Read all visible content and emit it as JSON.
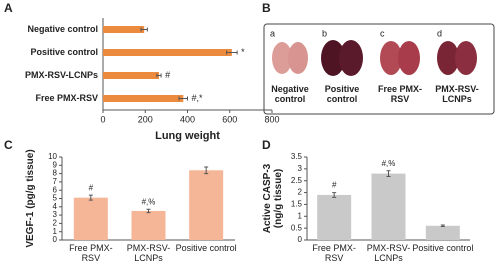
{
  "panels": [
    "A",
    "B",
    "C",
    "D"
  ],
  "figure_b": {
    "letters": [
      "a",
      "b",
      "c",
      "d"
    ],
    "labels": [
      "Negative control",
      "Positive control",
      "Free PMX-RSV",
      "PMX-RSV-LCNPs"
    ]
  },
  "chart_data": [
    {
      "type": "barh",
      "categories": [
        "Negative control",
        "Positive control",
        "PMX-RSV-LCNPs",
        "Free PMX-RSV"
      ],
      "values": [
        195,
        610,
        265,
        380
      ],
      "errors": [
        15,
        25,
        10,
        20
      ],
      "annotations": [
        null,
        "*",
        "#",
        "#,*"
      ],
      "color": "#ec8a3e",
      "xlabel": "Lung weight",
      "xlim": [
        0,
        800
      ],
      "xticks": [
        0,
        200,
        400,
        600,
        800
      ]
    },
    {
      "type": "bar",
      "categories": [
        "Free PMX-RSV",
        "PMX-RSV-LCNPs",
        "Positive control"
      ],
      "values": [
        5.1,
        3.5,
        8.4
      ],
      "errors": [
        0.3,
        0.2,
        0.4
      ],
      "annotations": [
        "#",
        "#,%",
        null
      ],
      "color": "#f5b597",
      "ylabel": "VEGF-1 (pg/g tissue)",
      "ylim": [
        0,
        10
      ],
      "yticks": [
        0,
        1,
        2,
        3,
        4,
        5,
        6,
        7,
        8,
        9,
        10
      ]
    },
    {
      "type": "bar",
      "categories": [
        "Free PMX-RSV",
        "PMX-RSV-LCNPs",
        "Positive control"
      ],
      "values": [
        1.9,
        2.8,
        0.6
      ],
      "errors": [
        0.1,
        0.12,
        0.03
      ],
      "annotations": [
        "#",
        "#,%",
        null
      ],
      "color": "#c9c9c9",
      "ylabel": "Active CASP-3 (ng/g tissue)",
      "ylim": [
        0,
        3.5
      ],
      "yticks": [
        0,
        0.5,
        1,
        1.5,
        2,
        2.5,
        3,
        3.5
      ]
    }
  ]
}
